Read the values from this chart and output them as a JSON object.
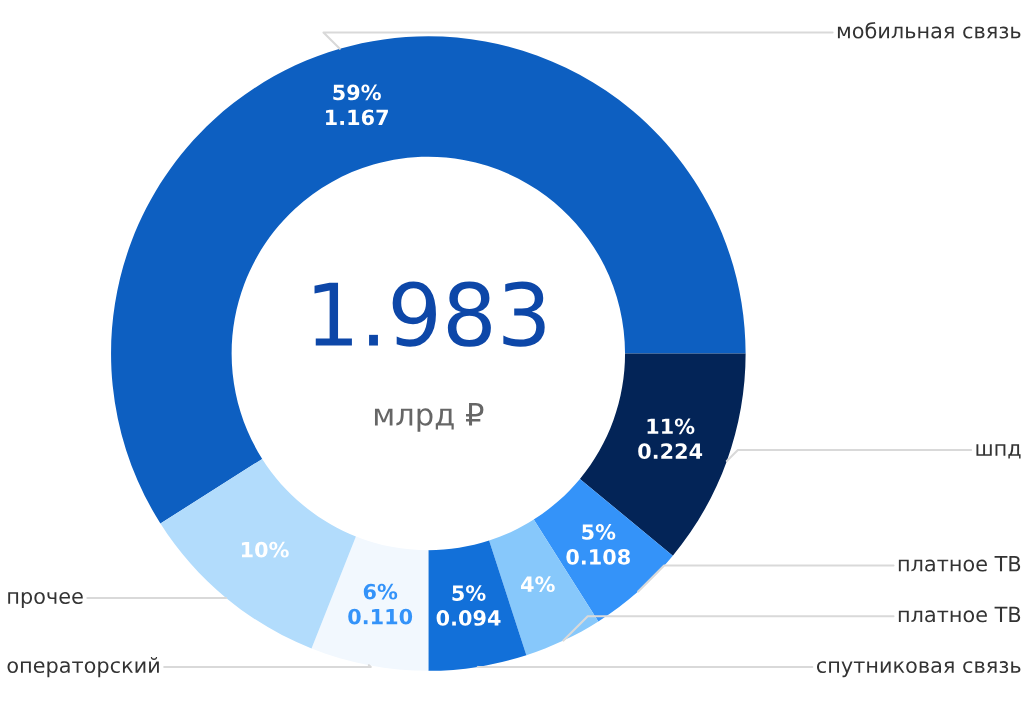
{
  "chart_data": {
    "type": "donut",
    "categories": [
      "мобильная связь",
      "шпд",
      "платное ТВ",
      "платное ТВ",
      "спутниковая связь",
      "операторский",
      "прочее"
    ],
    "values": [
      59,
      11,
      5,
      4,
      5,
      6,
      10
    ],
    "colors": [
      "#0d5fc1",
      "#032457",
      "#3493f9",
      "#87c8fb",
      "#1270d9",
      "#f2f8fe",
      "#b2dcfc"
    ],
    "value_labels": [
      "59%\n1.167",
      "11%\n0.224",
      "5%\n0.108",
      "4%",
      "5%\n0.094",
      "6%\n0.110",
      "10%"
    ],
    "annotations": [
      "1.983",
      "млрд ₽"
    ]
  }
}
